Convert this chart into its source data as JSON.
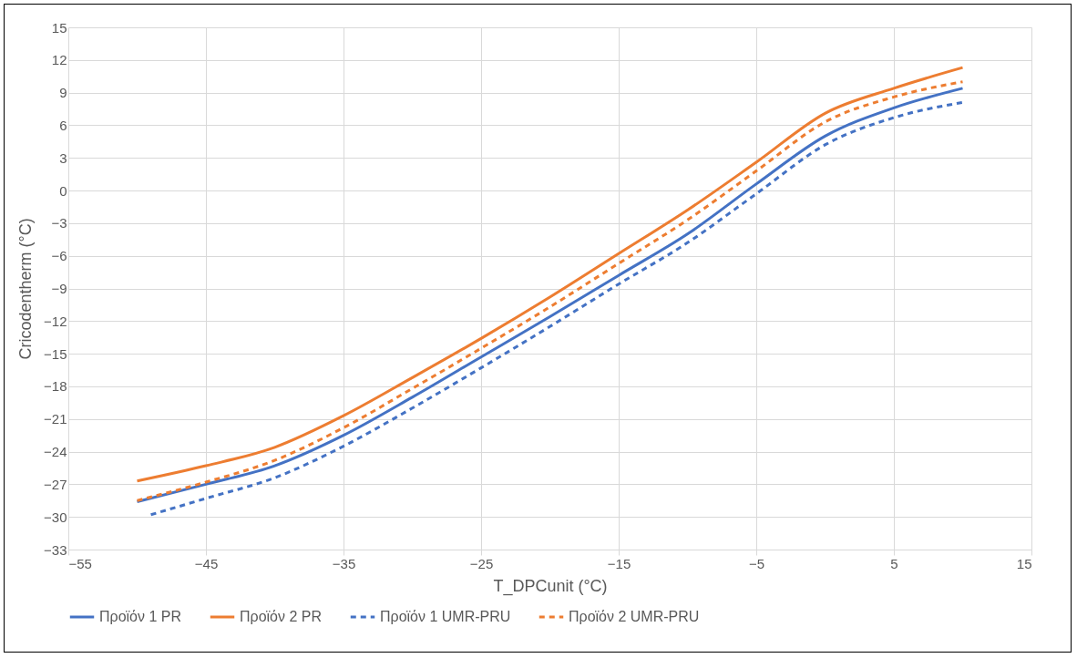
{
  "chart_data": {
    "type": "line",
    "xlabel": "T_DPCunit (°C)",
    "ylabel": "Cricodentherm (°C)",
    "xlim": [
      -55,
      15
    ],
    "xticks": [
      -55,
      -45,
      -35,
      -25,
      -15,
      -5,
      5,
      15
    ],
    "ylim": [
      -33,
      15
    ],
    "yticks": [
      -33,
      -30,
      -27,
      -24,
      -21,
      -18,
      -15,
      -12,
      -9,
      -6,
      -3,
      0,
      3,
      6,
      9,
      12,
      15
    ],
    "grid": true,
    "legend": "bottom",
    "marker": "none",
    "series": [
      {
        "name": "Προϊόν 1 PR",
        "color": "#4472c4",
        "line_style": "solid",
        "x": [
          -50,
          -45,
          -40,
          -35,
          -30,
          -25,
          -20,
          -15,
          -10,
          -5,
          0,
          5,
          10
        ],
        "values": [
          -28.6,
          -27.0,
          -25.3,
          -22.5,
          -19.0,
          -15.3,
          -11.6,
          -7.8,
          -4.0,
          0.6,
          5.0,
          7.6,
          9.4
        ]
      },
      {
        "name": "Προϊόν 2 PR",
        "color": "#ed7d31",
        "line_style": "solid",
        "x": [
          -50,
          -45,
          -40,
          -35,
          -30,
          -25,
          -20,
          -15,
          -10,
          -5,
          0,
          5,
          10
        ],
        "values": [
          -26.7,
          -25.3,
          -23.6,
          -20.7,
          -17.2,
          -13.6,
          -9.8,
          -5.8,
          -1.8,
          2.6,
          7.1,
          9.4,
          11.3
        ]
      },
      {
        "name": "Προϊόν 1 UMR-PRU",
        "color": "#4472c4",
        "line_style": "dashed",
        "x": [
          -49,
          -45,
          -40,
          -35,
          -30,
          -25,
          -20,
          -15,
          -10,
          -5,
          0,
          5,
          10
        ],
        "values": [
          -29.8,
          -28.3,
          -26.4,
          -23.5,
          -20.0,
          -16.3,
          -12.5,
          -8.6,
          -4.8,
          -0.3,
          4.2,
          6.7,
          8.1
        ]
      },
      {
        "name": "Προϊόν 2 UMR-PRU",
        "color": "#ed7d31",
        "line_style": "dashed",
        "x": [
          -50,
          -45,
          -40,
          -35,
          -30,
          -25,
          -20,
          -15,
          -10,
          -5,
          0,
          5,
          10
        ],
        "values": [
          -28.5,
          -26.8,
          -24.8,
          -21.8,
          -18.2,
          -14.5,
          -10.7,
          -6.7,
          -2.7,
          1.8,
          6.3,
          8.6,
          10.0
        ]
      }
    ]
  }
}
